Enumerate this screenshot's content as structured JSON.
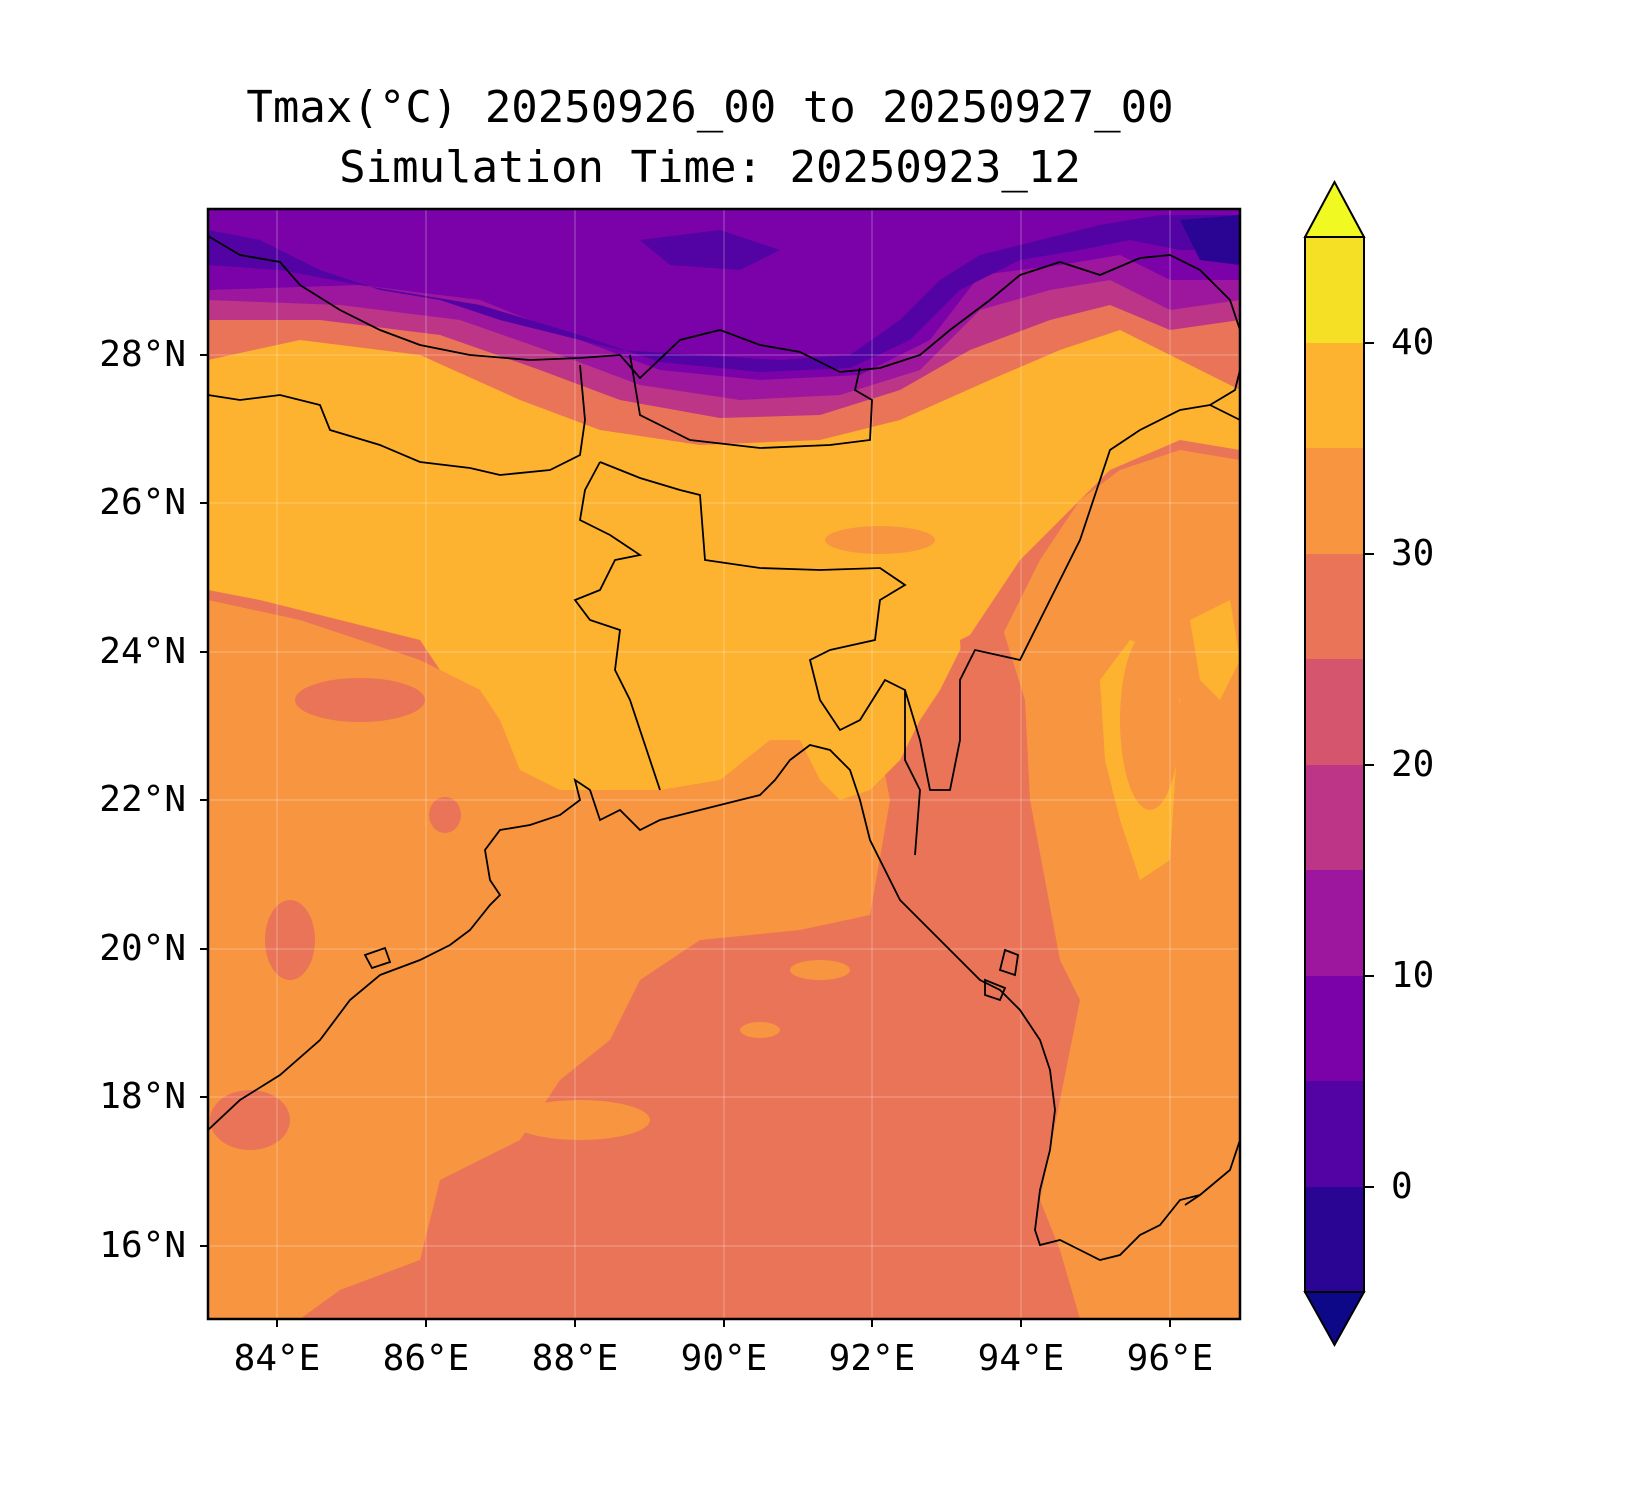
{
  "title": {
    "line1": "Tmax(°C) 20250926_00 to 20250927_00",
    "line2": "Simulation Time: 20250923_12"
  },
  "map": {
    "lon_range": [
      83.05,
      96.95
    ],
    "lat_range": [
      14.9,
      29.85
    ],
    "lon_ticks": [
      "84°E",
      "86°E",
      "88°E",
      "90°E",
      "92°E",
      "94°E",
      "96°E"
    ],
    "lat_ticks": [
      "16°N",
      "18°N",
      "20°N",
      "22°N",
      "24°N",
      "26°N",
      "28°N"
    ],
    "gridlines": true,
    "coastlines": true,
    "borders": true
  },
  "colorbar": {
    "ticks": [
      "0",
      "10",
      "20",
      "30",
      "40"
    ],
    "levels": [
      -5,
      0,
      5,
      10,
      15,
      20,
      25,
      30,
      35,
      40,
      45
    ],
    "extend": "both",
    "colors": [
      "#0d0887",
      "#2a0593",
      "#5302a3",
      "#7a02a8",
      "#9c179e",
      "#bc3587",
      "#d5546e",
      "#ea7457",
      "#f89540",
      "#fdb32f",
      "#f5e026",
      "#f0f921"
    ],
    "colormap": "plasma"
  }
}
